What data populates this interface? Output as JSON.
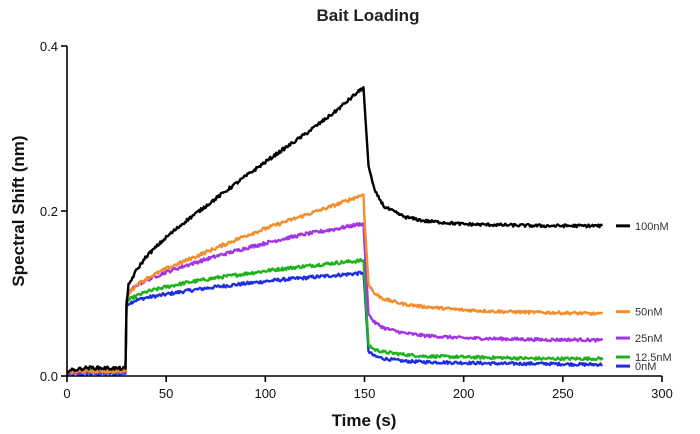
{
  "chart_data": {
    "type": "line",
    "title": "Bait Loading",
    "xlabel": "Time (s)",
    "ylabel": "Spectral Shift (nm)",
    "xlim": [
      0,
      300
    ],
    "ylim": [
      0,
      0.4
    ],
    "xticks": [
      0,
      50,
      100,
      150,
      200,
      250,
      300
    ],
    "xtick_labels": [
      "0",
      "50",
      "100",
      "150",
      "200",
      "250",
      "300"
    ],
    "yticks": [
      0,
      0.2,
      0.4
    ],
    "ytick_labels": [
      "0.0",
      "0.2",
      "0.4"
    ],
    "grid": false,
    "legend_position": "right, at end of each curve",
    "series": [
      {
        "name": "100nM",
        "color": "#000000",
        "baseline": 0.009,
        "assoc_start": 0.085,
        "assoc_end": 0.35,
        "dissoc_end": 0.182,
        "x": [
          0,
          10,
          29.5,
          30,
          31,
          35,
          40,
          50,
          60,
          75,
          90,
          105,
          120,
          135,
          149.5,
          150,
          152,
          155,
          160,
          170,
          180,
          200,
          220,
          240,
          260,
          270
        ],
        "y": [
          0.006,
          0.01,
          0.009,
          0.085,
          0.11,
          0.128,
          0.145,
          0.168,
          0.188,
          0.215,
          0.242,
          0.268,
          0.293,
          0.32,
          0.35,
          0.33,
          0.255,
          0.225,
          0.205,
          0.193,
          0.188,
          0.184,
          0.183,
          0.182,
          0.182,
          0.182
        ]
      },
      {
        "name": "50nM",
        "color": "#f28e2b",
        "baseline": 0.006,
        "assoc_start": 0.088,
        "assoc_end": 0.22,
        "dissoc_end": 0.075,
        "x": [
          0,
          10,
          29.5,
          30,
          31,
          35,
          40,
          50,
          60,
          75,
          90,
          105,
          120,
          135,
          149.5,
          150,
          152,
          155,
          160,
          170,
          180,
          200,
          220,
          240,
          260,
          270
        ],
        "y": [
          0.005,
          0.006,
          0.006,
          0.088,
          0.1,
          0.11,
          0.118,
          0.13,
          0.14,
          0.155,
          0.17,
          0.183,
          0.195,
          0.207,
          0.22,
          0.19,
          0.112,
          0.1,
          0.093,
          0.087,
          0.084,
          0.08,
          0.078,
          0.077,
          0.076,
          0.075
        ]
      },
      {
        "name": "25nM",
        "color": "#a335e3",
        "baseline": 0.005,
        "assoc_start": 0.092,
        "assoc_end": 0.185,
        "dissoc_end": 0.043,
        "x": [
          0,
          10,
          29.5,
          30,
          31,
          35,
          40,
          50,
          60,
          75,
          90,
          105,
          120,
          135,
          149.5,
          150,
          152,
          155,
          160,
          170,
          180,
          200,
          220,
          240,
          260,
          270
        ],
        "y": [
          0.004,
          0.005,
          0.005,
          0.092,
          0.1,
          0.11,
          0.116,
          0.126,
          0.134,
          0.145,
          0.155,
          0.164,
          0.172,
          0.178,
          0.185,
          0.16,
          0.075,
          0.065,
          0.058,
          0.052,
          0.049,
          0.046,
          0.045,
          0.044,
          0.044,
          0.043
        ]
      },
      {
        "name": "12.5nM",
        "color": "#1db31d",
        "baseline": 0.005,
        "assoc_start": 0.088,
        "assoc_end": 0.14,
        "dissoc_end": 0.021,
        "x": [
          0,
          10,
          29.5,
          30,
          31,
          35,
          40,
          50,
          60,
          75,
          90,
          105,
          120,
          135,
          149.5,
          150,
          152,
          155,
          160,
          170,
          180,
          200,
          220,
          240,
          260,
          270
        ],
        "y": [
          0.004,
          0.005,
          0.005,
          0.088,
          0.092,
          0.097,
          0.102,
          0.108,
          0.113,
          0.119,
          0.124,
          0.129,
          0.133,
          0.137,
          0.14,
          0.12,
          0.038,
          0.032,
          0.029,
          0.026,
          0.024,
          0.023,
          0.022,
          0.021,
          0.021,
          0.021
        ]
      },
      {
        "name": "0nM",
        "color": "#1f2fe0",
        "baseline": 0.003,
        "assoc_start": 0.085,
        "assoc_end": 0.125,
        "dissoc_end": 0.014,
        "x": [
          0,
          10,
          29.5,
          30,
          31,
          35,
          40,
          50,
          60,
          75,
          90,
          105,
          120,
          135,
          149.5,
          150,
          152,
          155,
          160,
          170,
          180,
          200,
          220,
          240,
          260,
          270
        ],
        "y": [
          0.002,
          0.003,
          0.003,
          0.085,
          0.088,
          0.092,
          0.095,
          0.099,
          0.103,
          0.108,
          0.112,
          0.116,
          0.119,
          0.122,
          0.125,
          0.108,
          0.03,
          0.024,
          0.021,
          0.018,
          0.017,
          0.016,
          0.015,
          0.015,
          0.014,
          0.014
        ]
      }
    ]
  }
}
